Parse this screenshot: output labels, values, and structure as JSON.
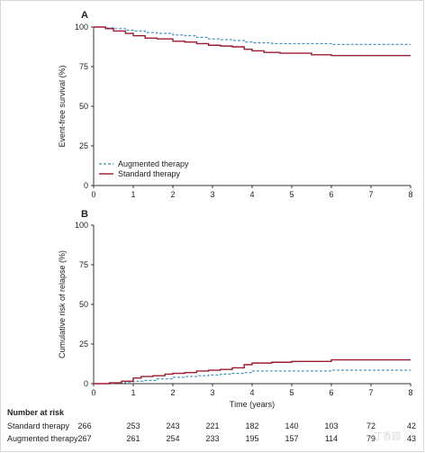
{
  "colors": {
    "augmented": "#3a8fb7",
    "standard": "#9b1c31",
    "axis": "#333333"
  },
  "chart_data": [
    {
      "type": "line",
      "panel": "A",
      "ylabel": "Event-free survival (%)",
      "xlabel": "",
      "xlim": [
        0,
        8
      ],
      "ylim": [
        0,
        100
      ],
      "xticks": [
        "0",
        "1",
        "2",
        "3",
        "4",
        "5",
        "6",
        "7",
        "8"
      ],
      "yticks": [
        "0",
        "25",
        "50",
        "75",
        "100"
      ],
      "legend_position": "bottom-left",
      "series": [
        {
          "name": "Augmented therapy",
          "style": "dashed",
          "color": "#3a8fb7",
          "x": [
            0,
            0.3,
            0.5,
            0.8,
            1.0,
            1.3,
            1.6,
            2.0,
            2.3,
            2.6,
            2.9,
            3.2,
            3.5,
            3.8,
            4.0,
            4.5,
            5.0,
            5.5,
            6.0,
            7.0,
            8.0
          ],
          "y": [
            100,
            99.5,
            99,
            98,
            97.5,
            96.5,
            96,
            95,
            94.5,
            93.5,
            92.5,
            92,
            91.5,
            90.5,
            90,
            89.5,
            89.5,
            89.5,
            89,
            89,
            89
          ]
        },
        {
          "name": "Standard therapy",
          "style": "solid",
          "color": "#9b1c31",
          "x": [
            0,
            0.3,
            0.5,
            0.8,
            1.0,
            1.3,
            1.6,
            2.0,
            2.3,
            2.6,
            2.9,
            3.2,
            3.5,
            3.8,
            4.0,
            4.3,
            4.7,
            5.0,
            5.5,
            6.0,
            7.0,
            8.0
          ],
          "y": [
            100,
            99,
            97.5,
            96,
            94.5,
            93,
            92.5,
            91,
            90.5,
            89.5,
            88.5,
            88,
            87.5,
            86,
            85,
            84,
            83.5,
            83.5,
            82.5,
            82,
            82,
            82
          ]
        }
      ]
    },
    {
      "type": "line",
      "panel": "B",
      "ylabel": "Cumulative risk of relapse (%)",
      "xlabel": "Time (years)",
      "xlim": [
        0,
        8
      ],
      "ylim": [
        0,
        100
      ],
      "xticks": [
        "0",
        "1",
        "2",
        "3",
        "4",
        "5",
        "6",
        "7",
        "8"
      ],
      "yticks": [
        "0",
        "25",
        "50",
        "75",
        "100"
      ],
      "series": [
        {
          "name": "Augmented therapy",
          "style": "dashed",
          "color": "#3a8fb7",
          "x": [
            0,
            0.5,
            0.8,
            1.0,
            1.3,
            1.6,
            2.0,
            2.3,
            2.6,
            2.9,
            3.2,
            3.5,
            3.8,
            4.0,
            4.5,
            5.0,
            5.5,
            6.0,
            7.0,
            8.0
          ],
          "y": [
            0,
            0.5,
            1,
            1.5,
            2,
            3,
            4,
            4.5,
            5,
            5.5,
            6,
            6.5,
            7,
            8,
            8,
            8,
            8,
            8.5,
            8.5,
            8.5
          ]
        },
        {
          "name": "Standard therapy",
          "style": "solid",
          "color": "#9b1c31",
          "x": [
            0,
            0.4,
            0.7,
            1.0,
            1.2,
            1.5,
            1.8,
            2.0,
            2.3,
            2.6,
            2.9,
            3.2,
            3.5,
            3.8,
            4.0,
            4.5,
            5.0,
            5.5,
            6.0,
            7.0,
            8.0
          ],
          "y": [
            0,
            0.5,
            1.5,
            3.5,
            4.5,
            5,
            6,
            6.5,
            7,
            8,
            8.5,
            9,
            10,
            12,
            13,
            13.5,
            14,
            14,
            15,
            15,
            15
          ]
        }
      ]
    }
  ],
  "number_at_risk": {
    "heading": "Number at risk",
    "x": [
      0,
      1,
      2,
      3,
      4,
      5,
      6,
      7,
      8
    ],
    "rows": [
      {
        "label": "Standard therapy",
        "values": [
          "266",
          "253",
          "243",
          "221",
          "182",
          "140",
          "103",
          "72",
          "42"
        ]
      },
      {
        "label": "Augmented therapy",
        "values": [
          "267",
          "261",
          "254",
          "233",
          "195",
          "157",
          "114",
          "79",
          "43"
        ]
      }
    ]
  },
  "watermark": "丁香园"
}
